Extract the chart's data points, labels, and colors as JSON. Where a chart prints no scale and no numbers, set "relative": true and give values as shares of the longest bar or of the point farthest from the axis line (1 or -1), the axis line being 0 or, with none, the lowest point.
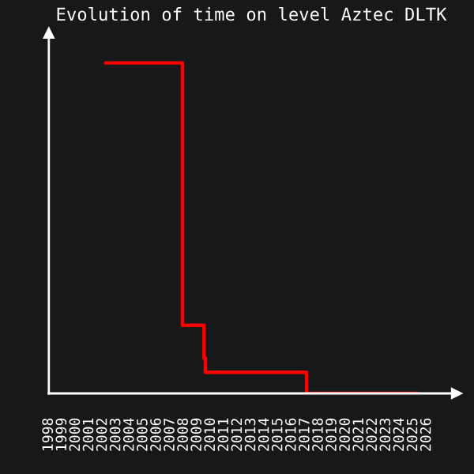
{
  "chart_data": {
    "type": "step",
    "title": "Evolution of time on level Aztec DLTK",
    "relative": true,
    "x": [
      2002.2,
      2007.9,
      2009.5,
      2009.6,
      2017.1,
      2025.4
    ],
    "series": [
      {
        "color": "#ff0000",
        "values": [
          1,
          0.206,
          0.107,
          0.064,
          0,
          0
        ]
      }
    ],
    "xlim": [
      1998,
      2028.2
    ],
    "xticks": [
      1998,
      1999,
      2000,
      2001,
      2002,
      2003,
      2004,
      2005,
      2006,
      2007,
      2008,
      2009,
      2010,
      2011,
      2012,
      2013,
      2014,
      2015,
      2016,
      2017,
      2018,
      2019,
      2020,
      2021,
      2022,
      2023,
      2024,
      2025,
      2026
    ],
    "grid": false,
    "legend": false
  }
}
